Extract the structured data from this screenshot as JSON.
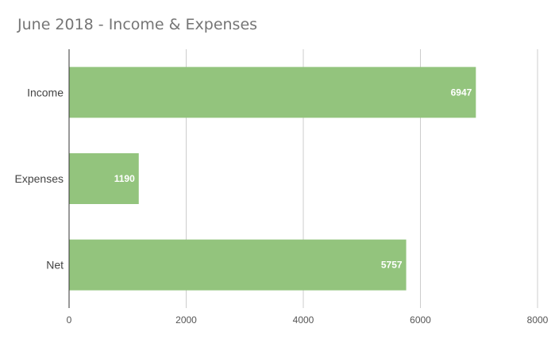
{
  "chart_data": {
    "type": "bar",
    "orientation": "horizontal",
    "title": "June 2018 - Income & Expenses",
    "categories": [
      "Income",
      "Expenses",
      "Net"
    ],
    "values": [
      6947,
      1190,
      5757
    ],
    "xlim": [
      0,
      8000
    ],
    "ticks": [
      0,
      2000,
      4000,
      6000,
      8000
    ],
    "tick_labels": [
      "0",
      "2000",
      "4000",
      "6000",
      "8000"
    ],
    "grid": true,
    "data_labels": true,
    "bar_color": "#93c47d",
    "xlabel": "",
    "ylabel": ""
  }
}
